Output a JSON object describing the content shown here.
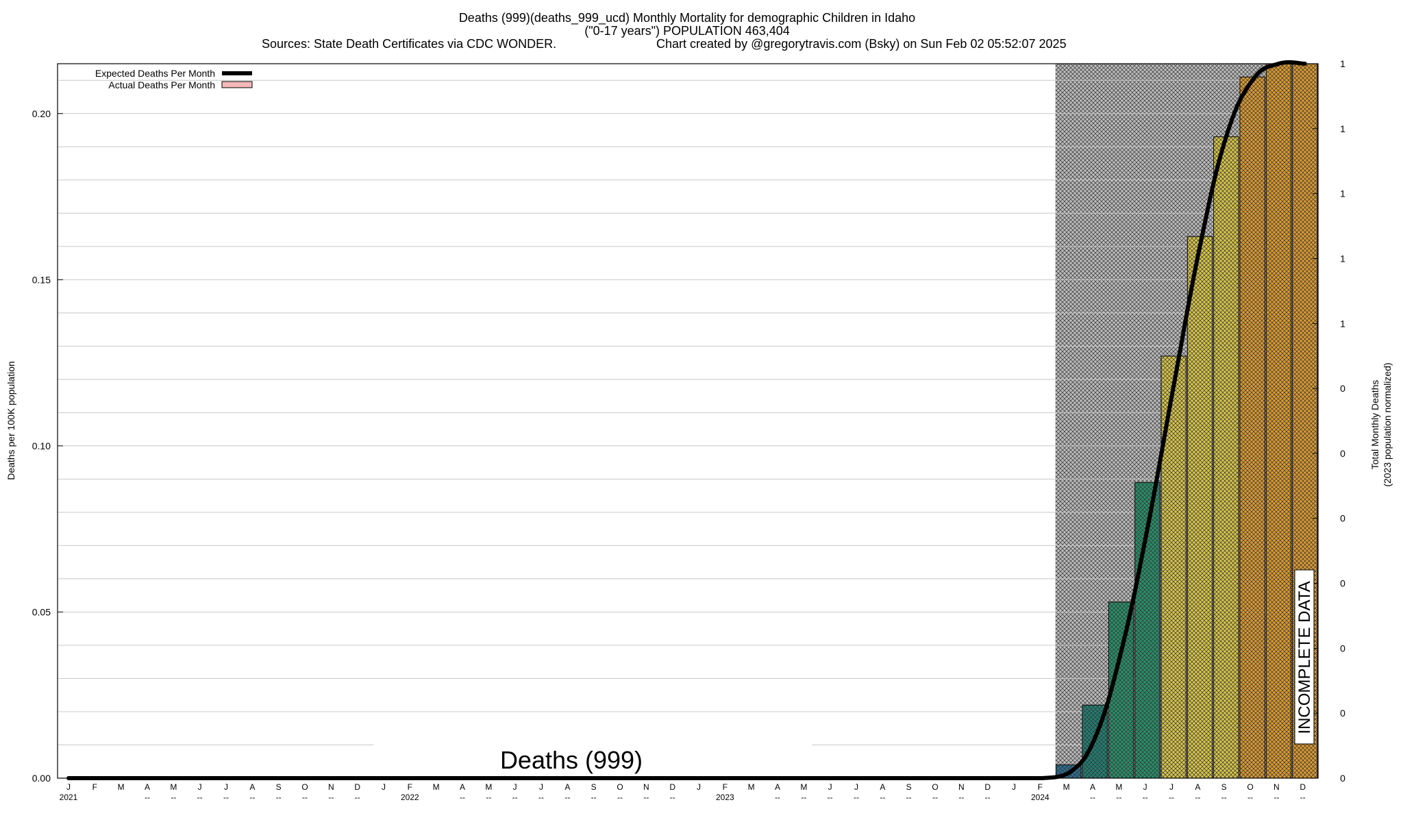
{
  "chart_data": {
    "type": "bar",
    "title_lines": [
      "Deaths (999)(deaths_999_ucd) Monthly Mortality for demographic Children in Idaho",
      "(\"0-17 years\") POPULATION 463,404",
      "Sources: State Death Certificates via CDC WONDER.",
      "Chart created by @gregorytravis.com (Bsky) on Sun Feb 02 05:52:07 2025"
    ],
    "ylabel": "Deaths per 100K population",
    "y2label_lines": [
      "Total Monthly Deaths",
      "(2023 population normalized)"
    ],
    "watermark": "Deaths (999)",
    "incomplete_label": "INCOMPLETE DATA",
    "ylim": [
      0,
      0.215
    ],
    "yticks": [
      "0.00",
      "0.05",
      "0.10",
      "0.15",
      "0.20"
    ],
    "y2ticks": [
      "0",
      "0",
      "0",
      "0",
      "0",
      "0",
      "0",
      "1",
      "1",
      "1",
      "1",
      "1"
    ],
    "legend": {
      "expected_label": "Expected Deaths Per Month",
      "actual_label": "Actual Deaths Per Month",
      "position": "top-left"
    },
    "months": [
      "J",
      "F",
      "M",
      "A",
      "M",
      "J",
      "J",
      "A",
      "S",
      "O",
      "N",
      "D",
      "J",
      "F",
      "M",
      "A",
      "M",
      "J",
      "J",
      "A",
      "S",
      "O",
      "N",
      "D",
      "J",
      "F",
      "M",
      "A",
      "M",
      "J",
      "J",
      "A",
      "S",
      "O",
      "N",
      "D",
      "J",
      "F",
      "M",
      "A",
      "M",
      "J",
      "J",
      "A",
      "S",
      "O",
      "N",
      "D"
    ],
    "month_sublabels": [
      "2021",
      "",
      "",
      "--",
      "--",
      "--",
      "--",
      "--",
      "--",
      "--",
      "--",
      "--",
      "",
      "2022",
      "",
      "--",
      "--",
      "--",
      "--",
      "--",
      "--",
      "--",
      "--",
      "--",
      "",
      "2023",
      "",
      "--",
      "--",
      "--",
      "--",
      "--",
      "--",
      "--",
      "--",
      "--",
      "",
      "2024",
      "",
      "--",
      "--",
      "--",
      "--",
      "--",
      "--",
      "--",
      "--",
      "--"
    ],
    "incomplete_start_index": 38,
    "expected_curve": [
      0,
      0,
      0,
      0,
      0,
      0,
      0,
      0,
      0,
      0,
      0,
      0,
      0,
      0,
      0,
      0,
      0,
      0,
      0,
      0,
      0,
      0,
      0,
      0,
      0,
      0,
      0,
      0,
      0,
      0,
      0,
      0,
      0,
      0,
      0,
      0,
      0,
      0,
      0.0015,
      0.012,
      0.038,
      0.075,
      0.118,
      0.16,
      0.193,
      0.21,
      0.215,
      0.215
    ],
    "actual_values": [
      0,
      0,
      0,
      0,
      0,
      0,
      0,
      0,
      0,
      0,
      0,
      0,
      0,
      0,
      0,
      0,
      0,
      0,
      0,
      0,
      0,
      0,
      0,
      0,
      0,
      0,
      0,
      0,
      0,
      0,
      0,
      0,
      0,
      0,
      0,
      0,
      0,
      0,
      0.004,
      0.022,
      0.053,
      0.089,
      0.127,
      0.163,
      0.193,
      0.211,
      0.215,
      0.215
    ],
    "colors": {
      "expected_line": "#000000",
      "legend_actual": "#f4b8b8",
      "bars": [
        "#2a6f8f",
        "#227f72",
        "#2a8f6a",
        "#2a8f6a",
        "#d6c44a",
        "#d6c44a",
        "#d6c44a",
        "#d89a32",
        "#d89a32",
        "#d89a32"
      ],
      "grid": "#c8c8c8",
      "hatch_background": "#bbbbbb"
    }
  }
}
